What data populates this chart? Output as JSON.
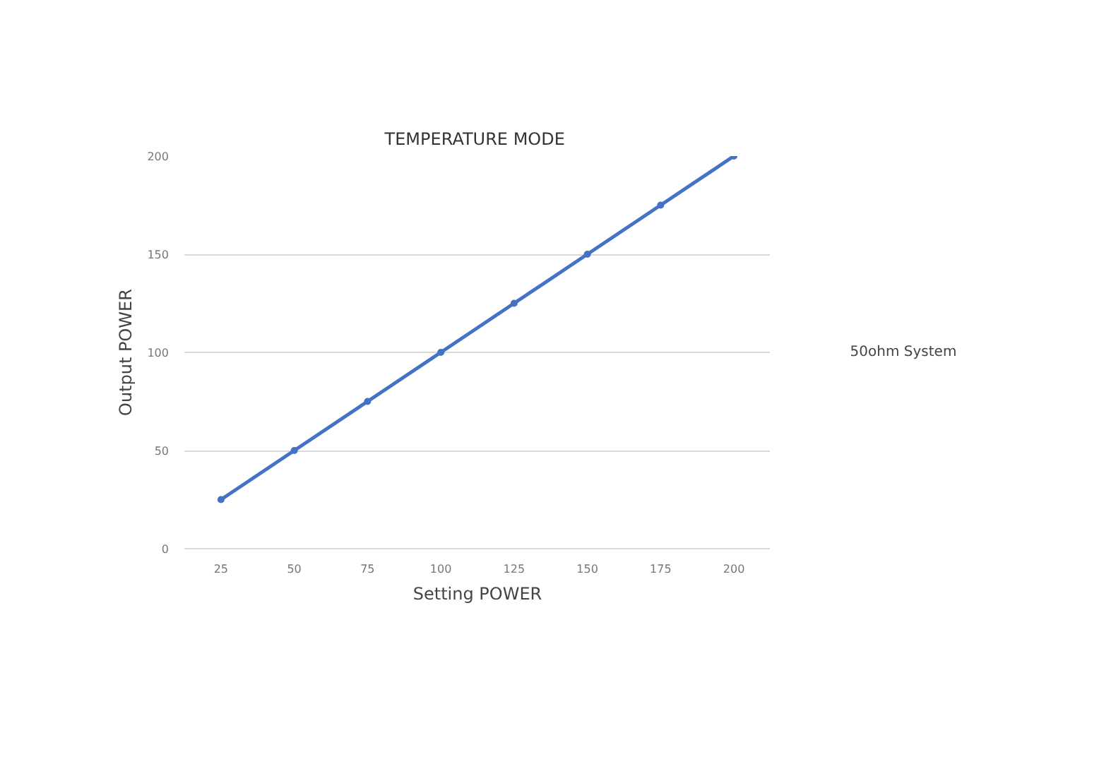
{
  "chart_data": {
    "type": "line",
    "title": "TEMPERATURE  MODE",
    "xlabel": "Setting POWER",
    "ylabel": "Output POWER",
    "categories": [
      "25",
      "50",
      "75",
      "100",
      "125",
      "150",
      "175",
      "200"
    ],
    "series": [
      {
        "name": "50ohm System",
        "color": "#4472c4",
        "values": [
          25,
          50,
          75,
          100,
          125,
          150,
          175,
          200
        ]
      }
    ],
    "ylim": [
      0,
      200
    ],
    "yticks": [
      0,
      50,
      100,
      150,
      200
    ],
    "grid": "y",
    "legend": "right",
    "marker": "circle",
    "line_style": "solid"
  }
}
